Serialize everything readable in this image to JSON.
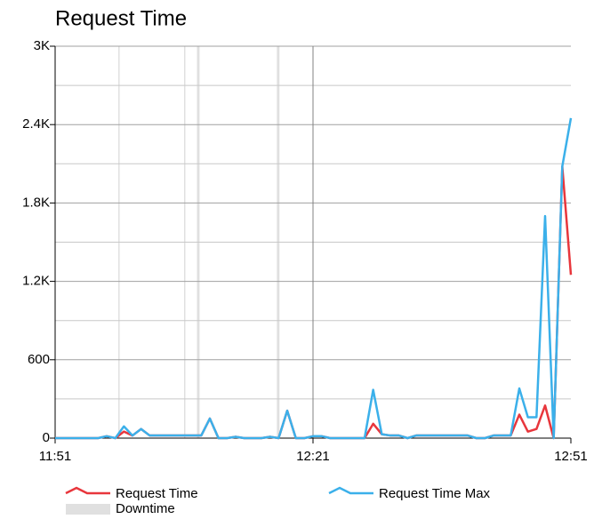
{
  "chart_data": {
    "type": "line",
    "title": "Request Time",
    "x": [
      0,
      1,
      2,
      3,
      4,
      5,
      6,
      7,
      8,
      9,
      10,
      11,
      12,
      13,
      14,
      15,
      16,
      17,
      18,
      19,
      20,
      21,
      22,
      23,
      24,
      25,
      26,
      27,
      28,
      29,
      30,
      31,
      32,
      33,
      34,
      35,
      36,
      37,
      38,
      39,
      40,
      41,
      42,
      43,
      44,
      45,
      46,
      47,
      48,
      49,
      50,
      51,
      52,
      53,
      54,
      55,
      56,
      57,
      58,
      59,
      60
    ],
    "series": [
      {
        "name": "Request Time",
        "color": "#e8363c",
        "values": [
          0,
          0,
          0,
          0,
          0,
          0,
          15,
          0,
          50,
          20,
          70,
          20,
          20,
          20,
          20,
          20,
          20,
          20,
          150,
          0,
          0,
          10,
          0,
          0,
          0,
          10,
          0,
          210,
          0,
          0,
          15,
          15,
          0,
          0,
          0,
          0,
          0,
          110,
          30,
          20,
          20,
          0,
          20,
          20,
          20,
          20,
          20,
          20,
          20,
          0,
          0,
          20,
          20,
          20,
          180,
          50,
          70,
          250,
          0,
          2080,
          1250
        ]
      },
      {
        "name": "Request Time Max",
        "color": "#3bb0ea",
        "values": [
          0,
          0,
          0,
          0,
          0,
          0,
          15,
          0,
          90,
          20,
          70,
          20,
          20,
          20,
          20,
          20,
          20,
          20,
          150,
          0,
          0,
          10,
          0,
          0,
          0,
          10,
          0,
          210,
          0,
          0,
          15,
          15,
          0,
          0,
          0,
          0,
          0,
          370,
          30,
          20,
          20,
          0,
          20,
          20,
          20,
          20,
          20,
          20,
          20,
          0,
          0,
          20,
          20,
          20,
          380,
          160,
          160,
          1700,
          0,
          2080,
          2450
        ]
      }
    ],
    "downtime_label": "Downtime",
    "downtime": [
      [
        7.35,
        7.5
      ],
      [
        15.0,
        15.15
      ],
      [
        16.5,
        16.8
      ],
      [
        25.8,
        26.1
      ]
    ],
    "xlim": [
      0,
      60
    ],
    "xticks": [
      {
        "value": 0,
        "label": "11:51"
      },
      {
        "value": 30,
        "label": "12:21"
      },
      {
        "value": 60,
        "label": "12:51"
      }
    ],
    "ylim": [
      0,
      3000
    ],
    "yticks": [
      0,
      600,
      {
        "value": 1200,
        "label": "1.2K"
      },
      {
        "value": 1800,
        "label": "1.8K"
      },
      {
        "value": 2400,
        "label": "2.4K"
      },
      {
        "value": 3000,
        "label": "3K"
      }
    ],
    "yminor": [
      300,
      900,
      1500,
      2100,
      2700
    ],
    "grid": true
  }
}
